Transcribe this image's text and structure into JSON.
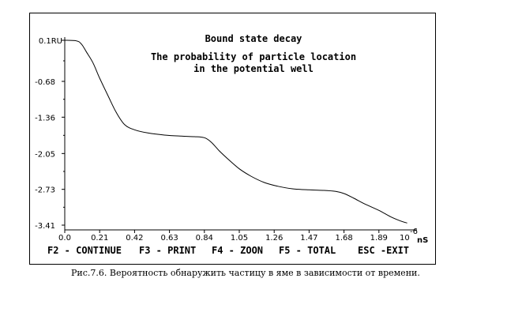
{
  "chart_data": {
    "type": "line",
    "title_lines": [
      "Bound state decay",
      "The probability of particle location",
      "in the potential well"
    ],
    "y_top_label": "0.1RU",
    "y_ticks": [
      0.1,
      -0.68,
      -1.36,
      -2.05,
      -2.73,
      -3.41
    ],
    "y_tick_labels": [
      "-0.68",
      "-1.36",
      "-2.05",
      "-2.73",
      "-3.41"
    ],
    "x_ticks": [
      0.0,
      0.21,
      0.42,
      0.63,
      0.84,
      1.05,
      1.26,
      1.47,
      1.68,
      1.89
    ],
    "x_tick_labels": [
      "0.0",
      "0.21",
      "0.42",
      "0.63",
      "0.84",
      "1.05",
      "1.26",
      "1.47",
      "1.68",
      "1.89"
    ],
    "x_multiplier_label": "10",
    "x_exponent_label": "-6",
    "x_unit_label": "nS",
    "xlim": [
      0.0,
      2.1
    ],
    "ylim": [
      -3.41,
      0.1
    ],
    "series": [
      {
        "x": [
          0.0,
          0.07,
          0.1,
          0.13,
          0.17,
          0.21,
          0.26,
          0.31,
          0.36,
          0.42,
          0.5,
          0.6,
          0.7,
          0.78,
          0.84,
          0.88,
          0.93,
          0.98,
          1.05,
          1.12,
          1.2,
          1.28,
          1.37,
          1.47,
          1.56,
          1.63,
          1.68,
          1.74,
          1.8,
          1.89,
          1.96,
          2.02,
          2.06
        ],
        "y": [
          0.1,
          0.09,
          0.03,
          -0.12,
          -0.33,
          -0.62,
          -0.95,
          -1.27,
          -1.5,
          -1.6,
          -1.66,
          -1.7,
          -1.72,
          -1.73,
          -1.75,
          -1.83,
          -2.0,
          -2.15,
          -2.34,
          -2.48,
          -2.6,
          -2.67,
          -2.72,
          -2.74,
          -2.75,
          -2.77,
          -2.81,
          -2.9,
          -3.0,
          -3.13,
          -3.25,
          -3.33,
          -3.37
        ]
      }
    ],
    "line_color": "#000000",
    "grid": false
  },
  "footer_keys": [
    "F2 - CONTINUE",
    "F3 - PRINT",
    "F4 - ZOON",
    "F5 - TOTAL",
    "ESC -EXIT"
  ],
  "caption": "Рис.7.6. Вероятность обнаружить частицу в яме в зависимости от времени."
}
